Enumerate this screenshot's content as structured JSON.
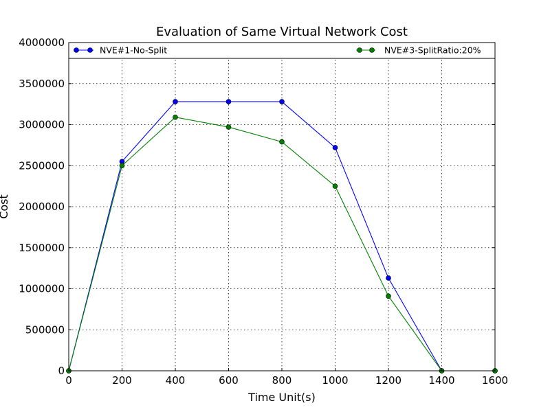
{
  "chart_data": {
    "type": "line",
    "title": "Evaluation of Same Virtual Network Cost",
    "xlabel": "Time Unit(s)",
    "ylabel": "Cost",
    "x": [
      0,
      200,
      400,
      600,
      800,
      1000,
      1200,
      1400,
      1600
    ],
    "xlim": [
      0,
      1600
    ],
    "ylim": [
      0,
      4000000
    ],
    "xticks": [
      "0",
      "200",
      "400",
      "600",
      "800",
      "1000",
      "1200",
      "1400",
      "1600"
    ],
    "yticks": [
      "0",
      "500000",
      "1000000",
      "1500000",
      "2000000",
      "2500000",
      "3000000",
      "3500000",
      "4000000"
    ],
    "grid": true,
    "legend_position": "top",
    "series": [
      {
        "name": "NVE#1-No-Split",
        "color": "#0000ff",
        "values": [
          0,
          2550000,
          3280000,
          3280000,
          3280000,
          2720000,
          1130000,
          0,
          0
        ]
      },
      {
        "name": "NVE#3-SplitRatio:20%",
        "color": "#007f00",
        "values": [
          0,
          2500000,
          3090000,
          2970000,
          2790000,
          2250000,
          910000,
          0,
          0
        ]
      }
    ]
  }
}
